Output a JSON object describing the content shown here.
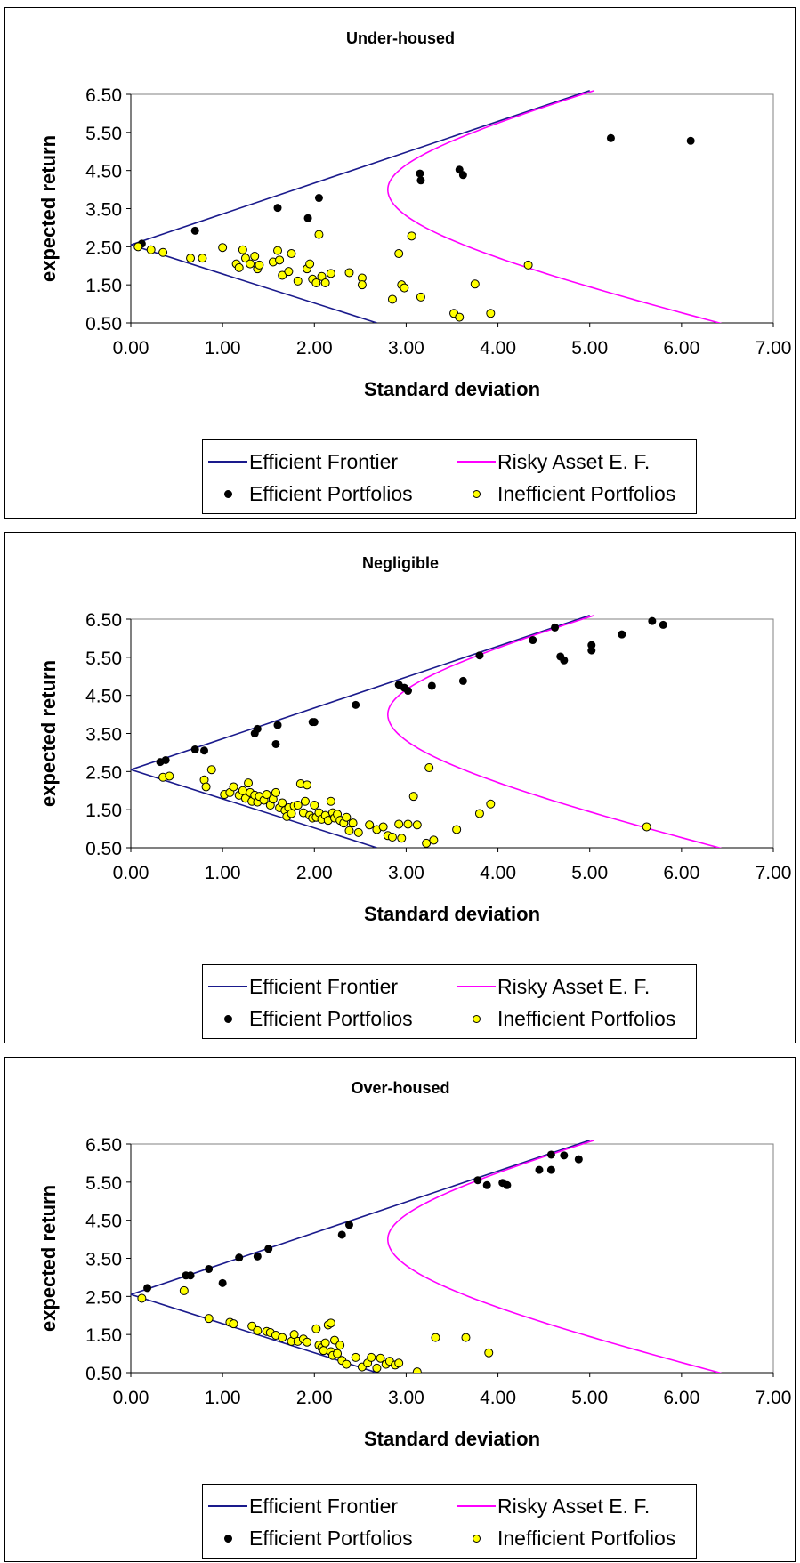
{
  "chart_data": [
    {
      "type": "scatter",
      "title": "Under-housed",
      "xlabel": "Standard deviation",
      "ylabel": "expected return",
      "xlim": [
        0,
        7
      ],
      "ylim": [
        0.5,
        6.5
      ],
      "xticks": [
        "0.00",
        "1.00",
        "2.00",
        "3.00",
        "4.00",
        "5.00",
        "6.00",
        "7.00"
      ],
      "yticks": [
        "0.50",
        "1.50",
        "2.50",
        "3.50",
        "4.50",
        "5.50",
        "6.50"
      ],
      "legend": [
        "Efficient Frontier",
        "Risky Asset E. F.",
        "Efficient Portfolios",
        "Inefficient Portfolios"
      ],
      "legend_position": "bottom",
      "series": [
        {
          "name": "Efficient Frontier",
          "kind": "line",
          "color": "#1a1a8c",
          "points": [
            [
              2.68,
              0.5
            ],
            [
              0,
              2.55
            ],
            [
              5.0,
              6.6
            ]
          ]
        },
        {
          "name": "Risky Asset E. F.",
          "kind": "curve",
          "color": "#ff00ff",
          "vertex": [
            2.8,
            4.0
          ],
          "points": [
            [
              5.05,
              6.6
            ],
            [
              2.8,
              4.0
            ],
            [
              6.6,
              0.38
            ]
          ]
        },
        {
          "name": "Efficient Portfolios",
          "kind": "points",
          "color": "#000000",
          "points": [
            [
              0.12,
              2.58
            ],
            [
              0.7,
              2.92
            ],
            [
              1.6,
              3.52
            ],
            [
              1.93,
              3.25
            ],
            [
              2.05,
              3.78
            ],
            [
              3.15,
              4.42
            ],
            [
              3.16,
              4.24
            ],
            [
              3.58,
              4.52
            ],
            [
              3.62,
              4.38
            ],
            [
              5.23,
              5.35
            ],
            [
              6.1,
              5.28
            ]
          ]
        },
        {
          "name": "Inefficient Portfolios",
          "kind": "points",
          "color": "#ffff00",
          "points": [
            [
              0.08,
              2.5
            ],
            [
              0.22,
              2.42
            ],
            [
              0.35,
              2.35
            ],
            [
              0.65,
              2.2
            ],
            [
              0.78,
              2.2
            ],
            [
              1.0,
              2.48
            ],
            [
              1.15,
              2.05
            ],
            [
              1.18,
              1.95
            ],
            [
              1.22,
              2.42
            ],
            [
              1.25,
              2.2
            ],
            [
              1.3,
              2.05
            ],
            [
              1.35,
              2.25
            ],
            [
              1.38,
              1.92
            ],
            [
              1.4,
              2.02
            ],
            [
              1.55,
              2.1
            ],
            [
              1.6,
              2.4
            ],
            [
              1.62,
              2.15
            ],
            [
              1.65,
              1.75
            ],
            [
              1.72,
              1.85
            ],
            [
              1.75,
              2.32
            ],
            [
              1.82,
              1.6
            ],
            [
              1.92,
              1.92
            ],
            [
              1.95,
              2.05
            ],
            [
              1.98,
              1.65
            ],
            [
              2.02,
              1.55
            ],
            [
              2.05,
              2.82
            ],
            [
              2.08,
              1.72
            ],
            [
              2.12,
              1.55
            ],
            [
              2.18,
              1.8
            ],
            [
              2.38,
              1.82
            ],
            [
              2.52,
              1.68
            ],
            [
              2.52,
              1.5
            ],
            [
              2.85,
              1.12
            ],
            [
              2.92,
              2.32
            ],
            [
              2.95,
              1.5
            ],
            [
              2.98,
              1.42
            ],
            [
              3.06,
              2.78
            ],
            [
              3.16,
              1.18
            ],
            [
              3.52,
              0.75
            ],
            [
              3.58,
              0.65
            ],
            [
              3.75,
              1.52
            ],
            [
              3.92,
              0.75
            ],
            [
              4.33,
              2.02
            ]
          ]
        }
      ]
    },
    {
      "type": "scatter",
      "title": "Negligible",
      "xlabel": "Standard deviation",
      "ylabel": "expected return",
      "xlim": [
        0,
        7
      ],
      "ylim": [
        0.5,
        6.5
      ],
      "xticks": [
        "0.00",
        "1.00",
        "2.00",
        "3.00",
        "4.00",
        "5.00",
        "6.00",
        "7.00"
      ],
      "yticks": [
        "0.50",
        "1.50",
        "2.50",
        "3.50",
        "4.50",
        "5.50",
        "6.50"
      ],
      "legend": [
        "Efficient Frontier",
        "Risky Asset E. F.",
        "Efficient Portfolios",
        "Inefficient Portfolios"
      ],
      "legend_position": "bottom",
      "series": [
        {
          "name": "Efficient Frontier",
          "kind": "line",
          "color": "#1a1a8c",
          "points": [
            [
              2.68,
              0.5
            ],
            [
              0,
              2.55
            ],
            [
              5.0,
              6.6
            ]
          ]
        },
        {
          "name": "Risky Asset E. F.",
          "kind": "curve",
          "color": "#ff00ff",
          "vertex": [
            2.8,
            4.0
          ],
          "points": [
            [
              5.05,
              6.6
            ],
            [
              2.8,
              4.0
            ],
            [
              6.6,
              0.38
            ]
          ]
        },
        {
          "name": "Efficient Portfolios",
          "kind": "points",
          "color": "#000000",
          "points": [
            [
              0.32,
              2.75
            ],
            [
              0.38,
              2.8
            ],
            [
              0.7,
              3.08
            ],
            [
              0.8,
              3.05
            ],
            [
              1.35,
              3.5
            ],
            [
              1.38,
              3.62
            ],
            [
              1.58,
              3.22
            ],
            [
              1.6,
              3.72
            ],
            [
              1.98,
              3.8
            ],
            [
              2.0,
              3.8
            ],
            [
              2.45,
              4.25
            ],
            [
              2.92,
              4.78
            ],
            [
              2.98,
              4.7
            ],
            [
              3.02,
              4.62
            ],
            [
              3.28,
              4.75
            ],
            [
              3.62,
              4.88
            ],
            [
              3.8,
              5.55
            ],
            [
              4.38,
              5.95
            ],
            [
              4.62,
              6.28
            ],
            [
              4.68,
              5.52
            ],
            [
              4.72,
              5.42
            ],
            [
              5.02,
              5.82
            ],
            [
              5.02,
              5.68
            ],
            [
              5.35,
              6.1
            ],
            [
              5.68,
              6.45
            ],
            [
              5.8,
              6.35
            ]
          ]
        },
        {
          "name": "Inefficient Portfolios",
          "kind": "points",
          "color": "#ffff00",
          "points": [
            [
              0.35,
              2.35
            ],
            [
              0.42,
              2.38
            ],
            [
              0.8,
              2.28
            ],
            [
              0.82,
              2.1
            ],
            [
              0.88,
              2.55
            ],
            [
              1.02,
              1.9
            ],
            [
              1.08,
              1.95
            ],
            [
              1.12,
              2.1
            ],
            [
              1.18,
              1.88
            ],
            [
              1.22,
              2.0
            ],
            [
              1.25,
              1.8
            ],
            [
              1.28,
              2.2
            ],
            [
              1.3,
              1.95
            ],
            [
              1.32,
              1.72
            ],
            [
              1.35,
              1.88
            ],
            [
              1.38,
              1.7
            ],
            [
              1.4,
              1.85
            ],
            [
              1.45,
              1.75
            ],
            [
              1.48,
              1.9
            ],
            [
              1.52,
              1.62
            ],
            [
              1.55,
              1.78
            ],
            [
              1.58,
              1.95
            ],
            [
              1.62,
              1.55
            ],
            [
              1.65,
              1.68
            ],
            [
              1.68,
              1.48
            ],
            [
              1.7,
              1.32
            ],
            [
              1.72,
              1.55
            ],
            [
              1.75,
              1.4
            ],
            [
              1.78,
              1.6
            ],
            [
              1.82,
              1.62
            ],
            [
              1.85,
              2.18
            ],
            [
              1.88,
              1.42
            ],
            [
              1.9,
              1.72
            ],
            [
              1.92,
              2.15
            ],
            [
              1.95,
              1.35
            ],
            [
              1.98,
              1.28
            ],
            [
              2.0,
              1.62
            ],
            [
              2.02,
              1.3
            ],
            [
              2.05,
              1.42
            ],
            [
              2.08,
              1.25
            ],
            [
              2.12,
              1.35
            ],
            [
              2.15,
              1.22
            ],
            [
              2.18,
              1.72
            ],
            [
              2.2,
              1.42
            ],
            [
              2.22,
              1.28
            ],
            [
              2.25,
              1.38
            ],
            [
              2.28,
              1.22
            ],
            [
              2.32,
              1.15
            ],
            [
              2.35,
              1.3
            ],
            [
              2.38,
              0.95
            ],
            [
              2.42,
              1.15
            ],
            [
              2.48,
              0.9
            ],
            [
              2.6,
              1.1
            ],
            [
              2.68,
              0.98
            ],
            [
              2.75,
              1.05
            ],
            [
              2.8,
              0.82
            ],
            [
              2.85,
              0.78
            ],
            [
              2.92,
              1.12
            ],
            [
              2.95,
              0.75
            ],
            [
              3.02,
              1.12
            ],
            [
              3.08,
              1.85
            ],
            [
              3.12,
              1.1
            ],
            [
              3.22,
              0.62
            ],
            [
              3.25,
              2.6
            ],
            [
              3.3,
              0.7
            ],
            [
              3.55,
              0.98
            ],
            [
              3.8,
              1.4
            ],
            [
              3.92,
              1.65
            ],
            [
              5.62,
              1.05
            ]
          ]
        }
      ]
    },
    {
      "type": "scatter",
      "title": "Over-housed",
      "xlabel": "Standard deviation",
      "ylabel": "expected return",
      "xlim": [
        0,
        7
      ],
      "ylim": [
        0.5,
        6.5
      ],
      "xticks": [
        "0.00",
        "1.00",
        "2.00",
        "3.00",
        "4.00",
        "5.00",
        "6.00",
        "7.00"
      ],
      "yticks": [
        "0.50",
        "1.50",
        "2.50",
        "3.50",
        "4.50",
        "5.50",
        "6.50"
      ],
      "legend": [
        "Efficient Frontier",
        "Risky Asset E. F.",
        "Efficient Portfolios",
        "Inefficient Portfolios"
      ],
      "legend_position": "bottom",
      "series": [
        {
          "name": "Efficient Frontier",
          "kind": "line",
          "color": "#1a1a8c",
          "points": [
            [
              2.68,
              0.5
            ],
            [
              0,
              2.55
            ],
            [
              5.0,
              6.6
            ]
          ]
        },
        {
          "name": "Risky Asset E. F.",
          "kind": "curve",
          "color": "#ff00ff",
          "vertex": [
            2.8,
            4.0
          ],
          "points": [
            [
              5.05,
              6.6
            ],
            [
              2.8,
              4.0
            ],
            [
              6.6,
              0.38
            ]
          ]
        },
        {
          "name": "Efficient Portfolios",
          "kind": "points",
          "color": "#000000",
          "points": [
            [
              0.18,
              2.72
            ],
            [
              0.6,
              3.05
            ],
            [
              0.65,
              3.05
            ],
            [
              0.85,
              3.22
            ],
            [
              1.0,
              2.85
            ],
            [
              1.18,
              3.52
            ],
            [
              1.38,
              3.55
            ],
            [
              1.5,
              3.75
            ],
            [
              2.3,
              4.12
            ],
            [
              2.38,
              4.38
            ],
            [
              3.78,
              5.55
            ],
            [
              3.88,
              5.42
            ],
            [
              4.05,
              5.48
            ],
            [
              4.1,
              5.42
            ],
            [
              4.45,
              5.82
            ],
            [
              4.58,
              5.82
            ],
            [
              4.58,
              6.22
            ],
            [
              4.72,
              6.2
            ],
            [
              4.88,
              6.1
            ]
          ]
        },
        {
          "name": "Inefficient Portfolios",
          "kind": "points",
          "color": "#ffff00",
          "points": [
            [
              0.12,
              2.45
            ],
            [
              0.58,
              2.65
            ],
            [
              0.85,
              1.92
            ],
            [
              1.08,
              1.82
            ],
            [
              1.12,
              1.78
            ],
            [
              1.32,
              1.72
            ],
            [
              1.38,
              1.6
            ],
            [
              1.48,
              1.58
            ],
            [
              1.52,
              1.55
            ],
            [
              1.58,
              1.48
            ],
            [
              1.65,
              1.42
            ],
            [
              1.75,
              1.32
            ],
            [
              1.78,
              1.5
            ],
            [
              1.82,
              1.32
            ],
            [
              1.88,
              1.38
            ],
            [
              1.92,
              1.3
            ],
            [
              2.02,
              1.65
            ],
            [
              2.05,
              1.22
            ],
            [
              2.08,
              1.15
            ],
            [
              2.1,
              1.08
            ],
            [
              2.12,
              1.28
            ],
            [
              2.15,
              1.75
            ],
            [
              2.18,
              1.8
            ],
            [
              2.18,
              1.05
            ],
            [
              2.2,
              0.95
            ],
            [
              2.22,
              1.35
            ],
            [
              2.25,
              1.0
            ],
            [
              2.28,
              1.22
            ],
            [
              2.3,
              0.82
            ],
            [
              2.35,
              0.72
            ],
            [
              2.45,
              0.9
            ],
            [
              2.52,
              0.65
            ],
            [
              2.58,
              0.75
            ],
            [
              2.62,
              0.9
            ],
            [
              2.68,
              0.62
            ],
            [
              2.72,
              0.88
            ],
            [
              2.78,
              0.72
            ],
            [
              2.82,
              0.8
            ],
            [
              2.88,
              0.7
            ],
            [
              2.92,
              0.75
            ],
            [
              3.12,
              0.52
            ],
            [
              3.32,
              1.42
            ],
            [
              3.65,
              1.42
            ],
            [
              3.9,
              1.02
            ]
          ]
        }
      ]
    }
  ]
}
